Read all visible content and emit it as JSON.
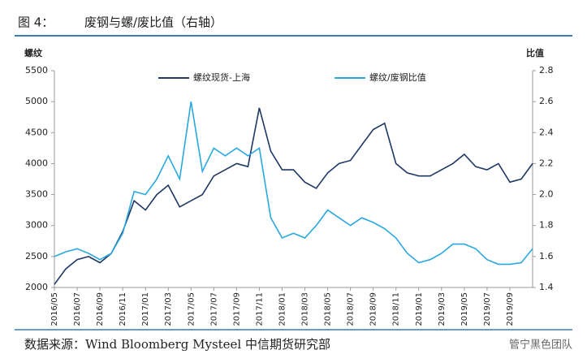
{
  "chart_data": {
    "type": "line",
    "figure_label": "图 4：",
    "title": "废钢与螺/废比值（右轴）",
    "y_label": "螺纹",
    "y2_label": "比值",
    "source": "数据来源：Wind Bloomberg Mysteel 中信期货研究部",
    "watermark": "管宁黑色团队",
    "categories": [
      "2016/05",
      null,
      "2016/07",
      null,
      "2016/09",
      null,
      "2016/11",
      null,
      "2017/01",
      null,
      "2017/03",
      null,
      "2017/05",
      null,
      "2017/07",
      null,
      "2017/09",
      null,
      "2017/11",
      null,
      "2018/01",
      null,
      "2018/03",
      null,
      "2018/05",
      null,
      "2018/07",
      null,
      "2018/09",
      null,
      "2018/11",
      null,
      "2019/01",
      null,
      "2019/03",
      null,
      "2019/05",
      null,
      "2019/07",
      null,
      "2019/09",
      null,
      null
    ],
    "series": [
      {
        "name": "螺纹现货-上海",
        "color": "#1f3864",
        "values": [
          2050,
          2300,
          2450,
          2500,
          2400,
          2550,
          2900,
          3400,
          3250,
          3500,
          3650,
          3300,
          3400,
          3500,
          3800,
          3900,
          4000,
          3950,
          4900,
          4200,
          3900,
          3900,
          3700,
          3600,
          3850,
          4000,
          4050,
          4300,
          4550,
          4650,
          4000,
          3850,
          3800,
          3800,
          3900,
          4000,
          4150,
          3950,
          3900,
          4000,
          3700,
          3750,
          4000
        ]
      },
      {
        "name": "螺纹/废钢比值",
        "color": "#29a8e0",
        "axis": "y2",
        "values": [
          1.6,
          1.63,
          1.65,
          1.62,
          1.58,
          1.62,
          1.75,
          2.02,
          2.0,
          2.1,
          2.25,
          2.1,
          2.6,
          2.15,
          2.3,
          2.25,
          2.3,
          2.25,
          2.3,
          1.85,
          1.72,
          1.75,
          1.72,
          1.8,
          1.9,
          1.85,
          1.8,
          1.85,
          1.82,
          1.78,
          1.72,
          1.62,
          1.56,
          1.58,
          1.62,
          1.68,
          1.68,
          1.65,
          1.58,
          1.55,
          1.55,
          1.56,
          1.65
        ]
      }
    ],
    "ylim": [
      2000,
      5500
    ],
    "yticks": [
      2000,
      2500,
      3000,
      3500,
      4000,
      4500,
      5000,
      5500
    ],
    "y2lim": [
      1.4,
      2.8
    ],
    "y2ticks": [
      1.4,
      1.6,
      1.8,
      {
        "value": 2,
        "label": "2.0"
      },
      2.2,
      2.4,
      2.6,
      2.8
    ]
  }
}
